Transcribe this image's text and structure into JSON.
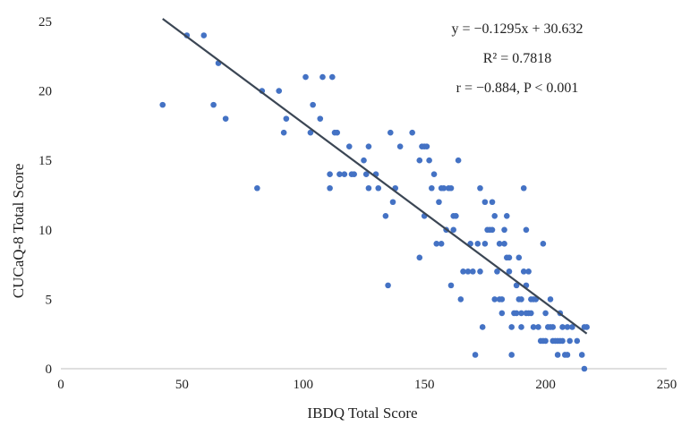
{
  "chart_data": {
    "type": "scatter",
    "xlabel": "IBDQ Total Score",
    "ylabel": "CUCaQ-8 Total Score",
    "xlim": [
      0,
      250
    ],
    "ylim": [
      0,
      25
    ],
    "xticks": [
      0,
      50,
      100,
      150,
      200,
      250
    ],
    "yticks": [
      0,
      5,
      10,
      15,
      20,
      25
    ],
    "grid": false,
    "legend": "none",
    "colors": {
      "points": "#4472C4",
      "trendline": "#3B4654",
      "axis": "#bfbfbf"
    },
    "trendline": {
      "slope": -0.1295,
      "intercept": 30.632,
      "x_start": 42,
      "x_end": 217
    },
    "annotations": {
      "equation": "y = −0.1295x + 30.632",
      "r_squared": "R² = 0.7818",
      "correlation": "r = −0.884, P < 0.001"
    },
    "series": [
      {
        "points": [
          [
            42,
            19
          ],
          [
            52,
            24
          ],
          [
            59,
            24
          ],
          [
            63,
            19
          ],
          [
            65,
            22
          ],
          [
            68,
            18
          ],
          [
            81,
            13
          ],
          [
            83,
            20
          ],
          [
            90,
            20
          ],
          [
            92,
            17
          ],
          [
            93,
            18
          ],
          [
            101,
            21
          ],
          [
            103,
            17
          ],
          [
            104,
            19
          ],
          [
            107,
            18
          ],
          [
            108,
            21
          ],
          [
            111,
            13
          ],
          [
            112,
            21
          ],
          [
            111,
            14
          ],
          [
            113,
            17
          ],
          [
            114,
            17
          ],
          [
            115,
            14
          ],
          [
            117,
            14
          ],
          [
            119,
            16
          ],
          [
            120,
            14
          ],
          [
            121,
            14
          ],
          [
            125,
            15
          ],
          [
            126,
            14
          ],
          [
            127,
            13
          ],
          [
            127,
            16
          ],
          [
            130,
            14
          ],
          [
            131,
            13
          ],
          [
            134,
            11
          ],
          [
            135,
            6
          ],
          [
            136,
            17
          ],
          [
            137,
            12
          ],
          [
            138,
            13
          ],
          [
            140,
            16
          ],
          [
            145,
            17
          ],
          [
            148,
            15
          ],
          [
            148,
            8
          ],
          [
            149,
            16
          ],
          [
            150,
            16
          ],
          [
            150,
            11
          ],
          [
            151,
            16
          ],
          [
            152,
            15
          ],
          [
            153,
            13
          ],
          [
            154,
            14
          ],
          [
            155,
            9
          ],
          [
            156,
            12
          ],
          [
            157,
            9
          ],
          [
            157,
            13
          ],
          [
            158,
            13
          ],
          [
            159,
            10
          ],
          [
            160,
            13
          ],
          [
            161,
            13
          ],
          [
            161,
            6
          ],
          [
            162,
            11
          ],
          [
            162,
            10
          ],
          [
            163,
            11
          ],
          [
            164,
            15
          ],
          [
            165,
            5
          ],
          [
            166,
            7
          ],
          [
            168,
            7
          ],
          [
            169,
            9
          ],
          [
            170,
            7
          ],
          [
            171,
            1
          ],
          [
            172,
            9
          ],
          [
            173,
            7
          ],
          [
            173,
            13
          ],
          [
            174,
            3
          ],
          [
            175,
            9
          ],
          [
            175,
            12
          ],
          [
            176,
            10
          ],
          [
            177,
            10
          ],
          [
            178,
            10
          ],
          [
            178,
            12
          ],
          [
            179,
            5
          ],
          [
            179,
            11
          ],
          [
            180,
            7
          ],
          [
            181,
            5
          ],
          [
            181,
            9
          ],
          [
            182,
            4
          ],
          [
            182,
            5
          ],
          [
            183,
            10
          ],
          [
            183,
            9
          ],
          [
            184,
            11
          ],
          [
            184,
            8
          ],
          [
            185,
            8
          ],
          [
            185,
            7
          ],
          [
            186,
            3
          ],
          [
            186,
            1
          ],
          [
            187,
            4
          ],
          [
            188,
            4
          ],
          [
            188,
            6
          ],
          [
            189,
            8
          ],
          [
            189,
            5
          ],
          [
            190,
            5
          ],
          [
            190,
            4
          ],
          [
            190,
            3
          ],
          [
            191,
            7
          ],
          [
            191,
            13
          ],
          [
            192,
            10
          ],
          [
            192,
            6
          ],
          [
            192,
            4
          ],
          [
            193,
            7
          ],
          [
            193,
            4
          ],
          [
            194,
            5
          ],
          [
            194,
            4
          ],
          [
            195,
            5
          ],
          [
            195,
            3
          ],
          [
            196,
            5
          ],
          [
            197,
            3
          ],
          [
            198,
            2
          ],
          [
            199,
            9
          ],
          [
            199,
            2
          ],
          [
            200,
            2
          ],
          [
            200,
            4
          ],
          [
            201,
            3
          ],
          [
            202,
            3
          ],
          [
            202,
            5
          ],
          [
            203,
            3
          ],
          [
            203,
            2
          ],
          [
            204,
            2
          ],
          [
            205,
            2
          ],
          [
            205,
            1
          ],
          [
            206,
            4
          ],
          [
            206,
            2
          ],
          [
            207,
            3
          ],
          [
            207,
            2
          ],
          [
            208,
            1
          ],
          [
            209,
            3
          ],
          [
            209,
            1
          ],
          [
            210,
            2
          ],
          [
            211,
            3
          ],
          [
            213,
            2
          ],
          [
            215,
            1
          ],
          [
            216,
            3
          ],
          [
            216,
            0
          ],
          [
            217,
            3
          ]
        ]
      }
    ]
  }
}
